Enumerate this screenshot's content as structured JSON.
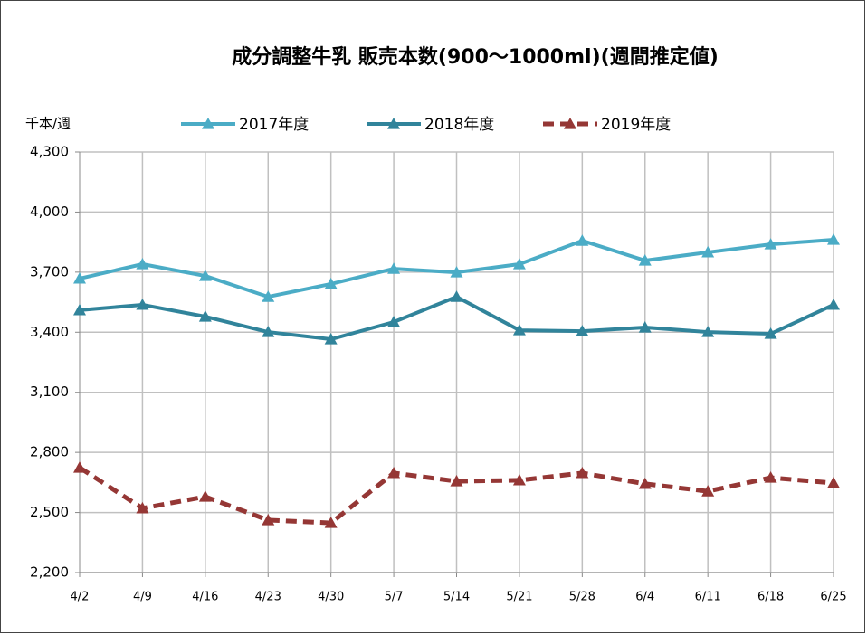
{
  "chart_data": {
    "type": "line",
    "title": "成分調整牛乳 販売本数(900～1000ml)(週間推定値)",
    "y_axis_label": "千本/週",
    "categories": [
      "4/2",
      "4/9",
      "4/16",
      "4/23",
      "4/30",
      "5/7",
      "5/14",
      "5/21",
      "5/28",
      "6/4",
      "6/11",
      "6/18",
      "6/25"
    ],
    "series": [
      {
        "name": "2017年度",
        "color": "#4bacc6",
        "line_style": "solid",
        "values": [
          3668,
          3740,
          3681,
          3577,
          3641,
          3717,
          3699,
          3740,
          3857,
          3758,
          3799,
          3839,
          3862
        ]
      },
      {
        "name": "2018年度",
        "color": "#31849b",
        "line_style": "solid",
        "values": [
          3510,
          3537,
          3478,
          3401,
          3365,
          3451,
          3577,
          3410,
          3405,
          3424,
          3401,
          3392,
          3537
        ]
      },
      {
        "name": "2019年度",
        "color": "#953735",
        "line_style": "dashed",
        "values": [
          2724,
          2521,
          2579,
          2462,
          2448,
          2697,
          2656,
          2661,
          2697,
          2643,
          2606,
          2674,
          2647
        ]
      }
    ],
    "ylim": [
      2200,
      4300
    ],
    "yticks": [
      {
        "value": 2200,
        "label": "2,200"
      },
      {
        "value": 2500,
        "label": "2,500"
      },
      {
        "value": 2800,
        "label": "2,800"
      },
      {
        "value": 3100,
        "label": "3,100"
      },
      {
        "value": 3400,
        "label": "3,400"
      },
      {
        "value": 3700,
        "label": "3,700"
      },
      {
        "value": 4000,
        "label": "4,000"
      },
      {
        "value": 4300,
        "label": "4,300"
      }
    ],
    "grid": true,
    "legend": "top"
  }
}
